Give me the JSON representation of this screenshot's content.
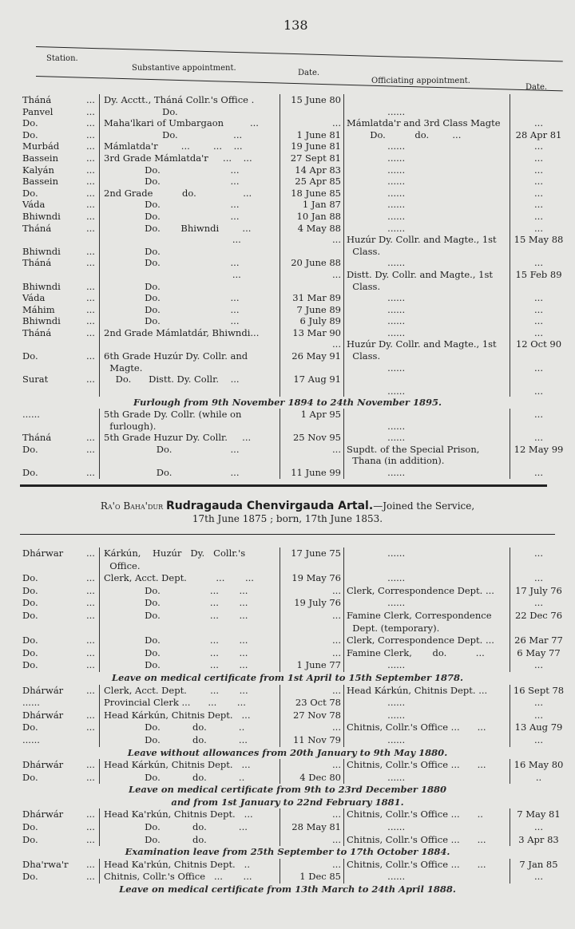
{
  "page_number": "138",
  "leader": "...",
  "headers": {
    "station": "Station.",
    "substantive": "Substantive appointment.",
    "date": "Date.",
    "officiating": "Officiating appointment.",
    "date2": "Date."
  },
  "section1_rows": [
    {
      "s": "Tháná",
      "b": "Dy. Acctt., Tháná Collr.'s Office .",
      "d": "15 June 80",
      "o": "",
      "e": ""
    },
    {
      "s": "Panvel",
      "b": "                    Do.",
      "d": "",
      "o": "              ......",
      "e": ""
    },
    {
      "s": "Do.",
      "b": "Maha'lkari of Umbargaon         ...",
      "d": "...",
      "o": "Mámlatda'r and 3rd Class Magte",
      "e": "..."
    },
    {
      "s": "Do.",
      "b": "                    Do.                   ...",
      "d": "1 June 81",
      "o": "        Do.          do.        ...",
      "e": "28 Apr 81"
    },
    {
      "s": "Murbád",
      "b": "Mámlatda'r        ...        ...    ...",
      "d": "19 June 81",
      "o": "              ......",
      "e": "..."
    },
    {
      "s": "Bassein",
      "b": "3rd Grade Mámlatda'r     ...    ...",
      "d": "27 Sept 81",
      "o": "              ......",
      "e": "..."
    },
    {
      "s": "Kalyán",
      "b": "              Do.                        ...",
      "d": "14 Apr 83",
      "o": "              ......",
      "e": "..."
    },
    {
      "s": "Bassein",
      "b": "              Do.                        ...",
      "d": "25 Apr 85",
      "o": "              ......",
      "e": "..."
    },
    {
      "s": "Do.",
      "b": "2nd Grade          do.                ...",
      "d": "18 June 85",
      "o": "              ......",
      "e": "..."
    },
    {
      "s": "Váda",
      "b": "              Do.                        ...",
      "d": "1 Jan 87",
      "o": "              ......",
      "e": "..."
    },
    {
      "s": "Bhiwndi",
      "b": "              Do.                        ...",
      "d": "10 Jan 88",
      "o": "              ......",
      "e": "..."
    },
    {
      "s": "Tháná",
      "b": "              Do.       Bhiwndi        ...",
      "d": "4 May 88",
      "o": "              ......",
      "e": "..."
    },
    {
      "s": "",
      "b": "                                            ...",
      "d": "...",
      "o": "Huzúr Dy. Collr. and Magte., 1st",
      "e": "15 May 88"
    },
    {
      "s": "Bhiwndi",
      "b": "              Do.",
      "d": "",
      "o": "  Class.",
      "e": ""
    },
    {
      "s": "Tháná",
      "b": "              Do.                        ...",
      "d": "20 June 88",
      "o": "              ......",
      "e": "..."
    },
    {
      "s": "",
      "b": "                                            ...",
      "d": "...",
      "o": "Distt. Dy. Collr. and Magte., 1st",
      "e": "15 Feb 89"
    },
    {
      "s": "Bhiwndi",
      "b": "              Do.",
      "d": "",
      "o": "  Class.",
      "e": ""
    },
    {
      "s": "Váda",
      "b": "              Do.                        ...",
      "d": "31 Mar 89",
      "o": "              ......",
      "e": "..."
    },
    {
      "s": "Máhim",
      "b": "              Do.                        ...",
      "d": "7 June 89",
      "o": "              ......",
      "e": "..."
    },
    {
      "s": "Bhiwndi",
      "b": "              Do.                        ...",
      "d": "6 July 89",
      "o": "              ......",
      "e": "..."
    },
    {
      "s": "Tháná",
      "b": "2nd Grade Mámlatdár, Bhiwndi...",
      "d": "13 Mar 90",
      "o": "              ......",
      "e": "..."
    },
    {
      "s": "",
      "b": "",
      "d": "...",
      "o": "Huzúr Dy. Collr. and Magte., 1st",
      "e": "12 Oct 90"
    },
    {
      "s": "Do.",
      "b": "6th Grade Huzúr Dy. Collr. and",
      "d": "26 May 91",
      "o": "  Class.",
      "e": ""
    },
    {
      "s": "",
      "b": "  Magte.",
      "d": "",
      "o": "              ......",
      "e": "..."
    },
    {
      "s": "Surat",
      "b": "    Do.      Distt. Dy. Collr.    ...",
      "d": "17 Aug 91",
      "o": "",
      "e": ""
    },
    {
      "s": "",
      "b": "",
      "d": "",
      "o": "              ......",
      "e": "..."
    },
    {
      "note": "Furlough from 9th November 1894 to 24th November 1895."
    },
    {
      "s": "......",
      "b": "5th Grade Dy. Collr. (while on",
      "d": "1 Apr 95",
      "o": "",
      "e": "..."
    },
    {
      "s": "",
      "b": "  furlough).",
      "d": "",
      "o": "              ......",
      "e": ""
    },
    {
      "s": "Tháná",
      "b": "5th Grade Huzur Dy. Collr.     ...",
      "d": "25 Nov 95",
      "o": "              ......",
      "e": "..."
    },
    {
      "s": "Do.",
      "b": "                  Do.                    ...",
      "d": "...",
      "o": "Supdt. of the Special Prison,",
      "e": "12 May 99"
    },
    {
      "s": "",
      "b": "",
      "d": "",
      "o": "  Thana (in addition).",
      "e": ""
    },
    {
      "s": "Do.",
      "b": "                  Do.                    ...",
      "d": "11 June 99",
      "o": "              ......",
      "e": "..."
    }
  ],
  "officer": {
    "title_prefix": "Ra'o Baha'dur",
    "name": "Rudragauda Chenvirgauda Artal.",
    "joined": "—Joined the Service,",
    "dates": "17th June 1875 ; born, 17th June 1853."
  },
  "section2_rows": [
    {
      "s": "Dhárwar",
      "b": "Kárkún,    Huzúr   Dy.   Collr.'s",
      "d": "17 June 75",
      "o": "              ......",
      "e": "..."
    },
    {
      "s": "",
      "b": "  Office.",
      "d": "",
      "o": "",
      "e": ""
    },
    {
      "s": "Do.",
      "b": "Clerk, Acct. Dept.          ...       ...",
      "d": "19 May 76",
      "o": "              ......",
      "e": "..."
    },
    {
      "s": "Do.",
      "b": "              Do.                 ...       ...",
      "d": "...",
      "o": "Clerk, Correspondence Dept. ...",
      "e": "17 July 76"
    },
    {
      "s": "Do.",
      "b": "              Do.                 ...       ...",
      "d": "19 July 76",
      "o": "              ......",
      "e": "..."
    },
    {
      "s": "Do.",
      "b": "              Do.                 ...       ...",
      "d": "...",
      "o": "Famine Clerk, Correspondence",
      "e": "22 Dec 76"
    },
    {
      "s": "",
      "b": "",
      "d": "",
      "o": "  Dept. (temporary).",
      "e": ""
    },
    {
      "s": "Do.",
      "b": "              Do.                 ...       ...",
      "d": "...",
      "o": "Clerk, Correspondence Dept. ...",
      "e": "26 Mar 77"
    },
    {
      "s": "Do.",
      "b": "              Do.                 ...       ...",
      "d": "...",
      "o": "Famine Clerk,       do.          ...",
      "e": "6 May 77"
    },
    {
      "s": "Do.",
      "b": "              Do.                 ...       ...",
      "d": "1 June 77",
      "o": "              ......",
      "e": "..."
    },
    {
      "note": "Leave on medical certificate from 1st April to 15th September 1878."
    },
    {
      "s": "Dhárwár",
      "b": "Clerk, Acct. Dept.        ...       ...",
      "d": "...",
      "o": "Head Kárkún, Chitnis Dept. ...",
      "e": "16 Sept 78"
    },
    {
      "s": "......",
      "b": "Provincial Clerk ...      ...       ...",
      "d": "23 Oct 78",
      "o": "              ......",
      "e": "..."
    },
    {
      "s": "Dhárwár",
      "b": "Head Kárkún, Chitnis Dept.   ...",
      "d": "27 Nov 78",
      "o": "              ......",
      "e": "..."
    },
    {
      "s": "Do.",
      "b": "              Do.           do.           ..",
      "d": "...",
      "o": "Chitnis, Collr.'s Office ...      ...",
      "e": "13 Aug 79"
    },
    {
      "s": "......",
      "b": "              Do.           do.           ...",
      "d": "11 Nov 79",
      "o": "              ......",
      "e": "..."
    },
    {
      "note": "Leave without allowances from 20th January to 9th May 1880."
    },
    {
      "s": "Dhárwár",
      "b": "Head Kárkún, Chitnis Dept.   ...",
      "d": "...",
      "o": "Chitnis, Collr.'s Office ...      ...",
      "e": "16 May 80"
    },
    {
      "s": "Do.",
      "b": "              Do.           do.           ..",
      "d": "4 Dec 80",
      "o": "              ......",
      "e": ".."
    },
    {
      "note": "Leave on medical certificate from 9th to 23rd December 1880"
    },
    {
      "note": "and from 1st January to 22nd February 1881."
    },
    {
      "s": "Dhárwár",
      "b": "Head Ka'rkún, Chitnis Dept.   ...",
      "d": "...",
      "o": "Chitnis, Collr.'s Office ...      ..",
      "e": "7 May 81"
    },
    {
      "s": "Do.",
      "b": "              Do.           do.           ...",
      "d": "28 May 81",
      "o": "              ......",
      "e": "..."
    },
    {
      "s": "Do.",
      "b": "              Do.           do.",
      "d": "...",
      "o": "Chitnis, Collr.'s Office ...      ...",
      "e": "3 Apr 83"
    },
    {
      "note": "Examination leave from 25th September to 17th October 1884."
    },
    {
      "s": "Dha'rwa'r",
      "b": "Head Ka'rkún, Chitnis Dept.   ..",
      "d": "...",
      "o": "Chitnis, Collr.'s Office ...      ...",
      "e": "7 Jan 85"
    },
    {
      "s": "Do.",
      "b": "Chitnis, Collr.'s Office   ...       ...",
      "d": "1 Dec 85",
      "o": "              ......",
      "e": "..."
    },
    {
      "note": "Leave on medical certificate from 13th March to 24th April 1888."
    }
  ]
}
